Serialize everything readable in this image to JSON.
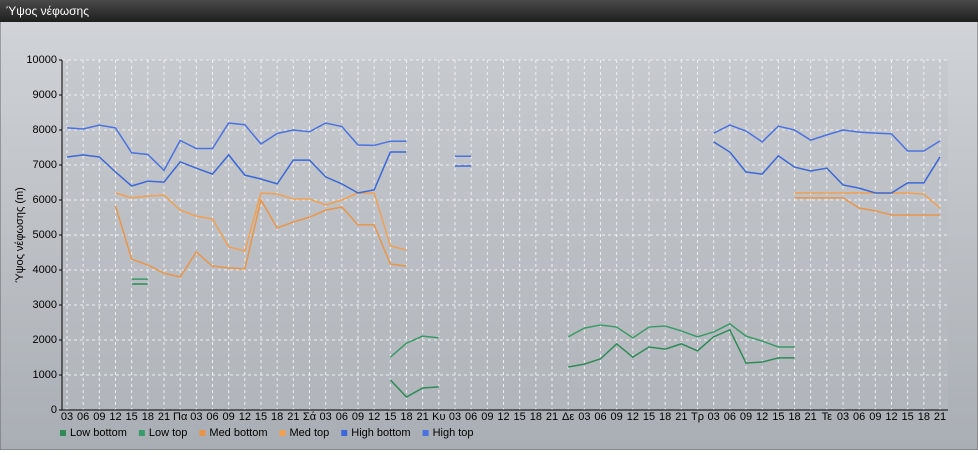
{
  "chart_data": {
    "type": "line",
    "title": "Ύψος νέφωσης",
    "y_label": "Ύψος νέφωσης (m)",
    "categories": [
      "03",
      "06",
      "09",
      "12",
      "15",
      "18",
      "21",
      "Πα",
      "03",
      "06",
      "09",
      "12",
      "15",
      "18",
      "21",
      "Σά",
      "03",
      "06",
      "09",
      "12",
      "15",
      "18",
      "21",
      "Κυ",
      "03",
      "06",
      "09",
      "12",
      "15",
      "18",
      "21",
      "Δε",
      "03",
      "06",
      "09",
      "12",
      "15",
      "18",
      "21",
      "Τρ",
      "03",
      "06",
      "09",
      "12",
      "15",
      "18",
      "21",
      "Τε",
      "03",
      "06",
      "09",
      "12",
      "15",
      "18",
      "21"
    ],
    "ylim": [
      0,
      10000
    ],
    "yticks": [
      0,
      1000,
      2000,
      3000,
      4000,
      5000,
      6000,
      7000,
      8000,
      9000,
      10000
    ],
    "grid": true,
    "series": [
      {
        "name": "Low bottom",
        "color": "#2e8b57",
        "values": [
          null,
          null,
          null,
          null,
          3600,
          3600,
          null,
          null,
          null,
          null,
          null,
          null,
          null,
          null,
          null,
          null,
          null,
          null,
          null,
          null,
          860,
          370,
          630,
          660,
          null,
          null,
          null,
          null,
          null,
          null,
          null,
          1230,
          1310,
          1460,
          1890,
          1510,
          1800,
          1740,
          1890,
          1690,
          2090,
          2290,
          1340,
          1370,
          1490,
          1490,
          null,
          null,
          null,
          null,
          null,
          null,
          null,
          null,
          null
        ]
      },
      {
        "name": "Low top",
        "color": "#3a9a68",
        "values": [
          null,
          null,
          null,
          null,
          3740,
          3740,
          null,
          null,
          null,
          null,
          null,
          null,
          null,
          null,
          null,
          null,
          null,
          null,
          null,
          null,
          1510,
          1910,
          2110,
          2060,
          null,
          null,
          null,
          null,
          null,
          null,
          null,
          2090,
          2340,
          2430,
          2370,
          2060,
          2370,
          2400,
          2260,
          2090,
          2230,
          2460,
          2110,
          1970,
          1800,
          1800,
          null,
          null,
          null,
          null,
          null,
          null,
          null,
          null,
          null
        ]
      },
      {
        "name": "Med bottom",
        "color": "#e8954a",
        "values": [
          null,
          null,
          null,
          5830,
          4310,
          4140,
          3910,
          3800,
          4510,
          4110,
          4060,
          4030,
          6000,
          5200,
          5370,
          5510,
          5710,
          5800,
          5290,
          5290,
          4170,
          4110,
          null,
          null,
          null,
          null,
          null,
          null,
          null,
          null,
          null,
          null,
          null,
          null,
          null,
          null,
          null,
          null,
          null,
          null,
          null,
          null,
          null,
          null,
          null,
          6060,
          6060,
          6060,
          6060,
          5770,
          5690,
          5570,
          5570,
          5570,
          5570
        ]
      },
      {
        "name": "Med top",
        "color": "#f0a050",
        "values": [
          null,
          null,
          null,
          6200,
          6060,
          6110,
          6140,
          5710,
          5540,
          5460,
          4660,
          4540,
          6200,
          6170,
          6030,
          6030,
          5860,
          6000,
          6200,
          6200,
          4690,
          4570,
          null,
          null,
          null,
          null,
          null,
          null,
          null,
          null,
          null,
          null,
          null,
          null,
          null,
          null,
          null,
          null,
          null,
          null,
          null,
          null,
          null,
          null,
          null,
          6200,
          6200,
          6200,
          6200,
          6200,
          6200,
          6200,
          6200,
          6170,
          5770
        ]
      },
      {
        "name": "High bottom",
        "color": "#3a68d8",
        "values": [
          7230,
          7290,
          7230,
          6800,
          6400,
          6540,
          6510,
          7090,
          6910,
          6740,
          7290,
          6710,
          6600,
          6460,
          7140,
          7140,
          6660,
          6460,
          6200,
          6290,
          7370,
          7370,
          null,
          null,
          6970,
          6970,
          null,
          null,
          null,
          null,
          null,
          null,
          null,
          null,
          null,
          null,
          null,
          null,
          null,
          null,
          7660,
          7370,
          6800,
          6740,
          7260,
          6940,
          6830,
          6910,
          6430,
          6340,
          6200,
          6200,
          6490,
          6490,
          7230
        ]
      },
      {
        "name": "High top",
        "color": "#4a72e0",
        "values": [
          8060,
          8030,
          8140,
          8060,
          7350,
          7300,
          6850,
          7700,
          7470,
          7470,
          8200,
          8150,
          7600,
          7900,
          8000,
          7950,
          8200,
          8100,
          7570,
          7560,
          7680,
          7680,
          null,
          null,
          7250,
          7250,
          null,
          null,
          null,
          null,
          null,
          null,
          null,
          null,
          null,
          null,
          null,
          null,
          null,
          null,
          7910,
          8140,
          7970,
          7660,
          8110,
          8000,
          7710,
          7860,
          8000,
          7940,
          7910,
          7890,
          7400,
          7400,
          7690
        ]
      }
    ]
  }
}
